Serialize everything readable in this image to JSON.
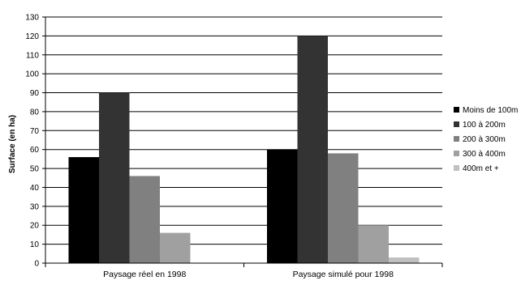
{
  "chart_data": {
    "type": "bar",
    "title": "",
    "xlabel": "",
    "ylabel": "Surface (en ha)",
    "ylim": [
      0,
      130
    ],
    "ytick_step": 10,
    "grid": "horizontal",
    "legend_position": "right",
    "categories": [
      "Paysage réel en 1998",
      "Paysage simulé pour 1998"
    ],
    "series": [
      {
        "name": "Moins de 100m",
        "color": "#000000",
        "values": [
          56,
          60
        ]
      },
      {
        "name": "100 à 200m",
        "color": "#333333",
        "values": [
          90,
          120
        ]
      },
      {
        "name": "200 à 300m",
        "color": "#808080",
        "values": [
          46,
          58
        ]
      },
      {
        "name": "300 à 400m",
        "color": "#a0a0a0",
        "values": [
          16,
          20
        ]
      },
      {
        "name": "400m et +",
        "color": "#c0c0c0",
        "values": [
          0,
          3
        ]
      }
    ]
  }
}
